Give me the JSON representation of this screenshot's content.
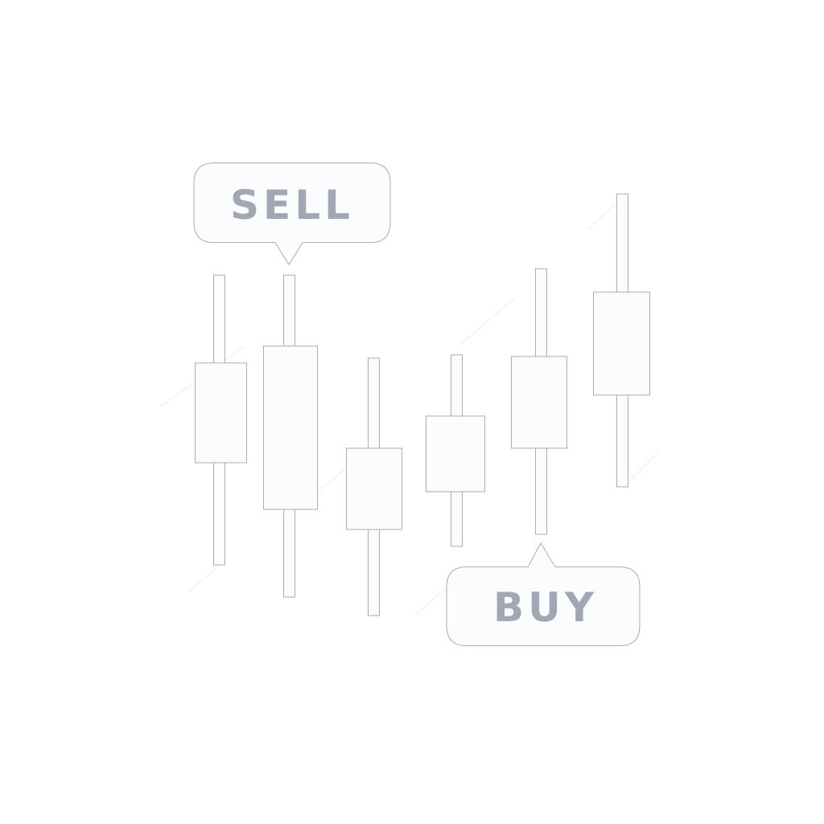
{
  "illustration": {
    "colors": {
      "background": "#ffffff",
      "stroke": "#a8adb8",
      "fill": "#fbfcfd",
      "label": "#a3a6b4",
      "accent_lines": "#eef0f4"
    },
    "sell_callout": {
      "label": "SELL"
    },
    "buy_callout": {
      "label": "BUY"
    },
    "candlestick_count": 6
  }
}
